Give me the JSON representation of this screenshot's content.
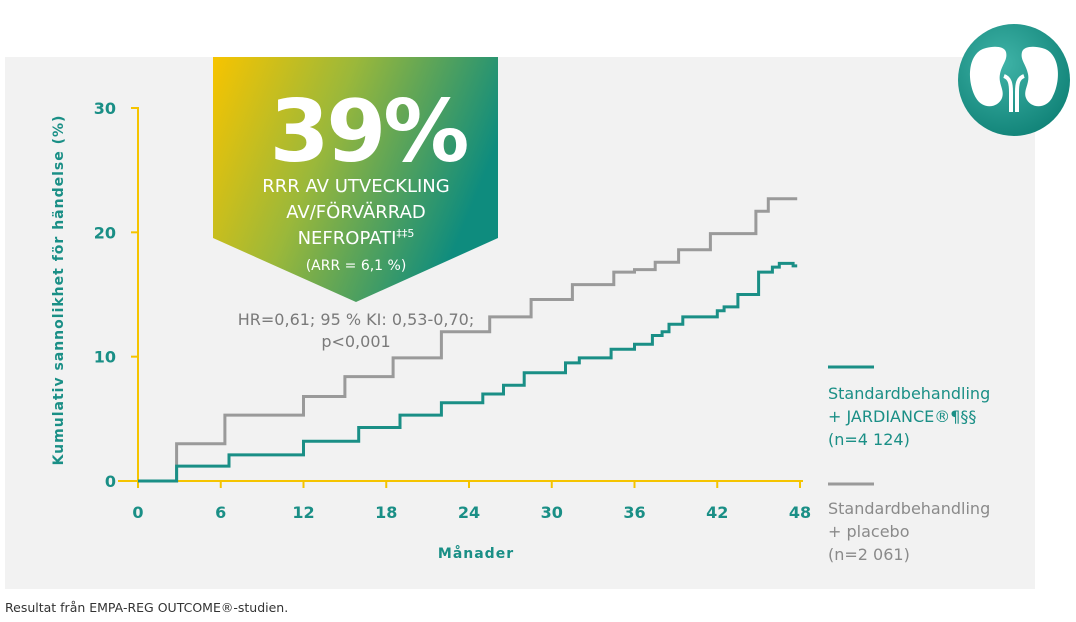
{
  "chart_data": {
    "type": "line",
    "step": true,
    "xlabel": "Månader",
    "ylabel": "Kumulativ sannolikhet för händelse (%)",
    "xlim": [
      0,
      48
    ],
    "ylim": [
      0,
      30
    ],
    "x_ticks": [
      0,
      6,
      12,
      18,
      24,
      30,
      36,
      42,
      48
    ],
    "y_ticks": [
      0,
      10,
      20,
      30
    ],
    "grid": false,
    "legend_position": "right",
    "series": [
      {
        "name": "Standardbehandling + JARDIANCE®¶§§ (n=4 124)",
        "color": "#1a8f86",
        "x": [
          0,
          2.8,
          2.8,
          6.6,
          6.6,
          12,
          12,
          16,
          16,
          19,
          19,
          22,
          22,
          25,
          25,
          26.5,
          26.5,
          28,
          28,
          31,
          31,
          32,
          32,
          34.3,
          34.3,
          36,
          36,
          37.3,
          37.3,
          38,
          38,
          38.5,
          38.5,
          39.5,
          39.5,
          42,
          42,
          42.5,
          42.5,
          43.5,
          43.5,
          45,
          45,
          46,
          46,
          46.5,
          46.5,
          47.5,
          47.5,
          47.8
        ],
        "y": [
          0,
          0,
          1.2,
          1.2,
          2.1,
          2.1,
          3.2,
          3.2,
          4.3,
          4.3,
          5.3,
          5.3,
          6.3,
          6.3,
          7.0,
          7.0,
          7.7,
          7.7,
          8.7,
          8.7,
          9.5,
          9.5,
          9.9,
          9.9,
          10.6,
          10.6,
          11.0,
          11.0,
          11.7,
          11.7,
          12.0,
          12.0,
          12.6,
          12.6,
          13.2,
          13.2,
          13.7,
          13.7,
          14.0,
          14.0,
          15.0,
          15.0,
          16.8,
          16.8,
          17.2,
          17.2,
          17.5,
          17.5,
          17.3,
          17.3
        ]
      },
      {
        "name": "Standardbehandling + placebo (n=2 061)",
        "color": "#9a9a9a",
        "x": [
          0,
          2.8,
          2.8,
          6.3,
          6.3,
          12,
          12,
          15,
          15,
          18.5,
          18.5,
          22,
          22,
          25.5,
          25.5,
          28.5,
          28.5,
          31.5,
          31.5,
          34.5,
          34.5,
          36,
          36,
          37.5,
          37.5,
          39.2,
          39.2,
          41.5,
          41.5,
          44.8,
          44.8,
          45.7,
          45.7,
          47.8
        ],
        "y": [
          0,
          0,
          3.0,
          3.0,
          5.3,
          5.3,
          6.8,
          6.8,
          8.4,
          8.4,
          9.9,
          9.9,
          12.0,
          12.0,
          13.2,
          13.2,
          14.6,
          14.6,
          15.8,
          15.8,
          16.8,
          16.8,
          17.0,
          17.0,
          17.6,
          17.6,
          18.6,
          18.6,
          19.9,
          19.9,
          21.7,
          21.7,
          22.7,
          22.7
        ]
      }
    ]
  },
  "banner": {
    "percent": "39%",
    "line1": "RRR AV UTVECKLING",
    "line2": "AV/FÖRVÄRRAD",
    "line3": "NEFROPATI",
    "line3_sup": "‡‡5",
    "line4": "(ARR = 6,1 %)"
  },
  "hr": {
    "line1": "HR=0,61; 95 % KI: 0,53-0,70;",
    "line2": "p<0,001"
  },
  "legend": {
    "jardiance": [
      "Standardbehandling",
      "+ JARDIANCE®¶§§",
      "(n=4 124)"
    ],
    "placebo": [
      "Standardbehandling",
      "+ placebo",
      "(n=2 061)"
    ]
  },
  "footnote": "Resultat från EMPA-REG OUTCOME®-studien.",
  "icon": "kidney-icon",
  "colors": {
    "teal": "#1a8f86",
    "gray": "#9a9a9a",
    "axis": "#f5c400",
    "panel": "#f2f2f2"
  }
}
